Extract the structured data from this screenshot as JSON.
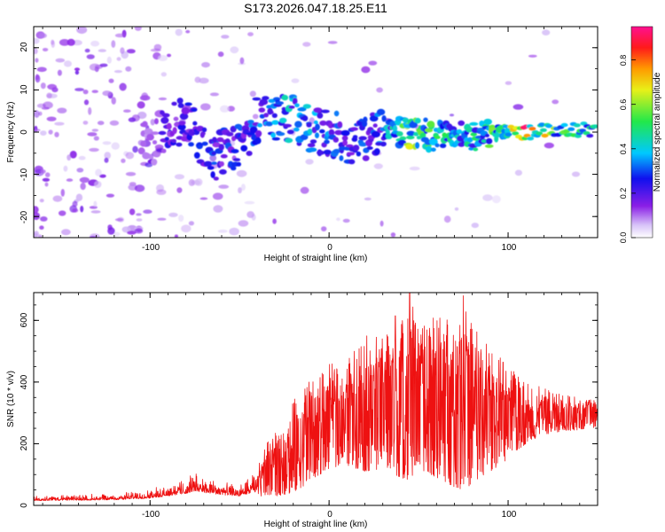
{
  "title": "S173.2026.047.18.25.E11",
  "colors": {
    "spectrum_accent": "#7a1fe0",
    "snr_line": "#ee1111",
    "axis": "#000000",
    "background": "#ffffff"
  },
  "chart_data": [
    {
      "type": "heatmap",
      "name": "spectrogram",
      "xlabel": "Height of straight line (km)",
      "ylabel": "Frequency (Hz)",
      "xlim": [
        -165,
        150
      ],
      "ylim": [
        -25,
        25
      ],
      "xticks": [
        -100,
        0,
        100
      ],
      "xtick_labels": [
        "-100",
        "0",
        "100"
      ],
      "yticks": [
        -20,
        -10,
        0,
        10,
        20
      ],
      "ytick_labels": [
        "-20",
        "-10",
        "0",
        "10",
        "20"
      ],
      "colorbar": {
        "label": "Normalized spectral amplitude",
        "range": [
          0,
          0.95
        ],
        "ticks": [
          0.0,
          0.2,
          0.4,
          0.6,
          0.8
        ],
        "tick_labels": [
          "0.0",
          "0.2",
          "0.4",
          "0.6",
          "0.8"
        ],
        "colormap": "rainbow (white-violet-blue-cyan-green-yellow-red-magenta)"
      },
      "ridge": [
        {
          "x": -100,
          "y": -3,
          "amp": 0.15
        },
        {
          "x": -90,
          "y": 1,
          "amp": 0.25
        },
        {
          "x": -80,
          "y": 3,
          "amp": 0.28
        },
        {
          "x": -65,
          "y": -6,
          "amp": 0.3
        },
        {
          "x": -50,
          "y": -3,
          "amp": 0.3
        },
        {
          "x": -40,
          "y": 3,
          "amp": 0.35
        },
        {
          "x": -25,
          "y": 4,
          "amp": 0.45
        },
        {
          "x": -10,
          "y": 1,
          "amp": 0.4
        },
        {
          "x": 10,
          "y": -2,
          "amp": 0.3
        },
        {
          "x": 30,
          "y": 0,
          "amp": 0.35
        },
        {
          "x": 45,
          "y": 0,
          "amp": 0.7
        },
        {
          "x": 60,
          "y": -1,
          "amp": 0.55
        },
        {
          "x": 75,
          "y": -1,
          "amp": 0.45
        },
        {
          "x": 95,
          "y": 0,
          "amp": 0.6
        },
        {
          "x": 110,
          "y": 0,
          "amp": 0.92
        },
        {
          "x": 130,
          "y": 0.5,
          "amp": 0.55
        },
        {
          "x": 148,
          "y": 0.5,
          "amp": 0.5
        }
      ]
    },
    {
      "type": "line",
      "name": "snr",
      "xlabel": "Height of straight line (km)",
      "ylabel": "SNR (10 * v/v)",
      "xlim": [
        -165,
        150
      ],
      "ylim": [
        0,
        690
      ],
      "xticks": [
        -100,
        0,
        100
      ],
      "xtick_labels": [
        "-100",
        "0",
        "100"
      ],
      "yticks": [
        0,
        200,
        400,
        600
      ],
      "ytick_labels": [
        "0",
        "200",
        "400",
        "600"
      ],
      "envelope": {
        "x": [
          -165,
          -120,
          -100,
          -80,
          -75,
          -60,
          -50,
          -40,
          -35,
          -30,
          -20,
          -10,
          -5,
          0,
          10,
          20,
          30,
          40,
          45,
          50,
          60,
          70,
          75,
          80,
          90,
          100,
          110,
          120,
          130,
          150
        ],
        "min": [
          10,
          12,
          15,
          25,
          30,
          22,
          20,
          25,
          35,
          30,
          40,
          80,
          100,
          120,
          130,
          110,
          120,
          90,
          80,
          120,
          90,
          60,
          50,
          70,
          110,
          150,
          200,
          230,
          240,
          250
        ],
        "max": [
          35,
          40,
          55,
          90,
          110,
          80,
          70,
          120,
          200,
          240,
          350,
          410,
          430,
          460,
          470,
          550,
          560,
          590,
          680,
          600,
          620,
          610,
          680,
          600,
          520,
          450,
          400,
          380,
          360,
          340
        ]
      },
      "peaks": [
        {
          "x": 45,
          "y": 690
        },
        {
          "x": 75,
          "y": 680
        },
        {
          "x": 37,
          "y": 615
        }
      ]
    }
  ]
}
